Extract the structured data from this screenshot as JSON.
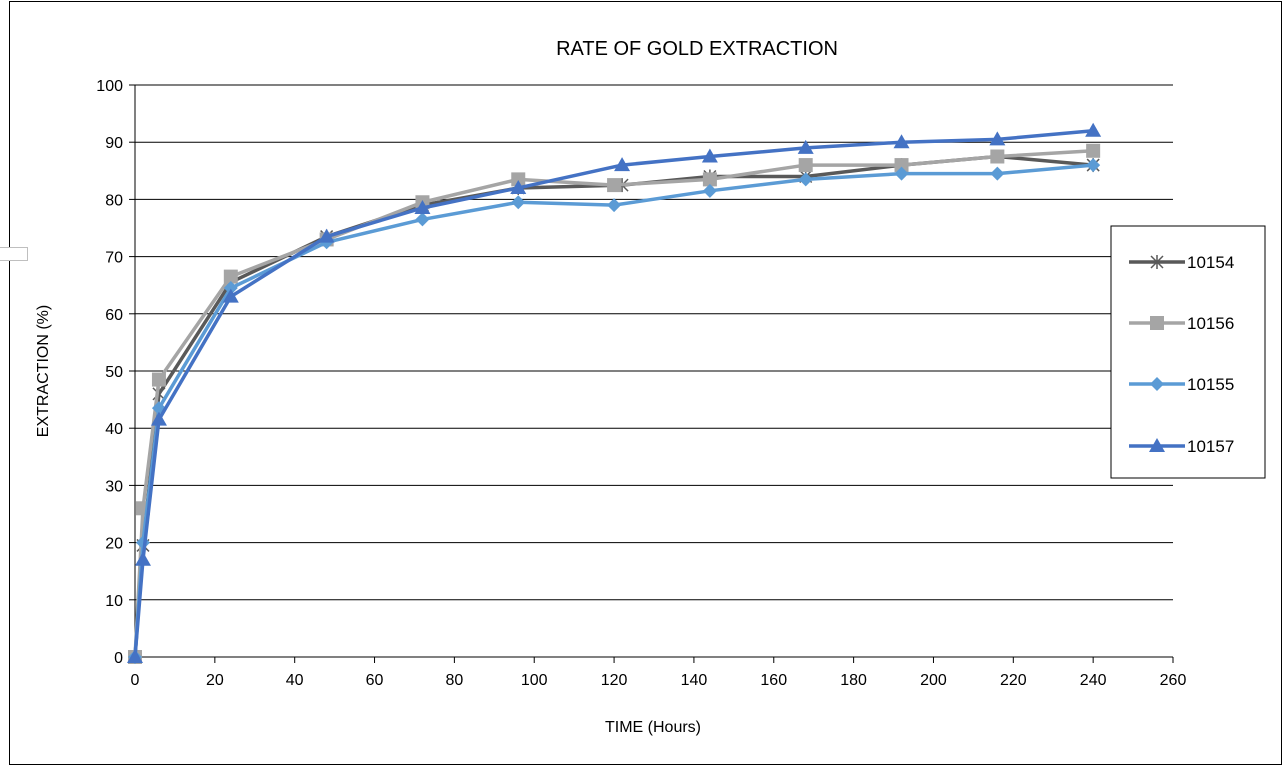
{
  "chart_data": {
    "type": "line",
    "title": "RATE OF GOLD EXTRACTION",
    "xlabel": "TIME (Hours)",
    "ylabel": "EXTRACTION (%)",
    "xlim": [
      0,
      260
    ],
    "ylim": [
      0,
      100
    ],
    "xticks": [
      0,
      20,
      40,
      60,
      80,
      100,
      120,
      140,
      160,
      180,
      200,
      220,
      240,
      260
    ],
    "yticks": [
      0,
      10,
      20,
      30,
      40,
      50,
      60,
      70,
      80,
      90,
      100
    ],
    "grid": "horizontal",
    "legend_position": "right",
    "series": [
      {
        "name": "10154",
        "color": "#595959",
        "marker": "star",
        "x": [
          0,
          2,
          6,
          24,
          48,
          72,
          96,
          122,
          144,
          168,
          192,
          216,
          240
        ],
        "y": [
          0,
          19.5,
          46,
          65.5,
          73.5,
          79,
          82,
          82.5,
          84,
          84,
          86,
          87.5,
          86
        ]
      },
      {
        "name": "10156",
        "color": "#a5a5a5",
        "marker": "square",
        "x": [
          0,
          2,
          6,
          24,
          48,
          72,
          96,
          120,
          144,
          168,
          192,
          216,
          240
        ],
        "y": [
          0,
          26,
          48.5,
          66.5,
          73,
          79.5,
          83.5,
          82.5,
          83.5,
          86,
          86,
          87.5,
          88.5
        ]
      },
      {
        "name": "10155",
        "color": "#5b9bd5",
        "marker": "diamond",
        "x": [
          0,
          2,
          6,
          24,
          48,
          72,
          96,
          120,
          144,
          168,
          192,
          216,
          240
        ],
        "y": [
          0,
          20,
          43.5,
          64.5,
          72.5,
          76.5,
          79.5,
          79,
          81.5,
          83.5,
          84.5,
          84.5,
          86
        ]
      },
      {
        "name": "10157",
        "color": "#4472c4",
        "marker": "triangle",
        "x": [
          0,
          2,
          6,
          24,
          48,
          72,
          96,
          122,
          144,
          168,
          192,
          216,
          240
        ],
        "y": [
          0,
          17,
          41.5,
          63,
          73.5,
          78.5,
          82,
          86,
          87.5,
          89,
          90,
          90.5,
          92
        ]
      }
    ]
  }
}
